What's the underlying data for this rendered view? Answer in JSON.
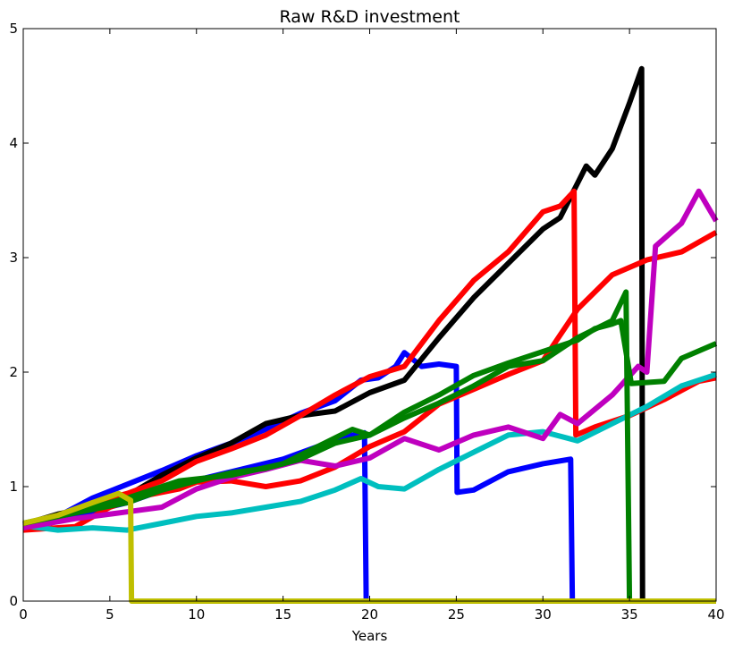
{
  "chart_data": {
    "type": "line",
    "title": "Raw R&D investment",
    "xlabel": "Years",
    "ylabel": "",
    "xlim": [
      0,
      40
    ],
    "ylim": [
      0,
      5
    ],
    "xticks": [
      0,
      5,
      10,
      15,
      20,
      25,
      30,
      35,
      40
    ],
    "yticks": [
      0,
      1,
      2,
      3,
      4,
      5
    ],
    "grid": false,
    "legend": "none",
    "series": [
      {
        "color": "#0000ff",
        "points": [
          [
            0,
            0.66
          ],
          [
            2,
            0.74
          ],
          [
            4,
            0.9
          ],
          [
            6,
            1.02
          ],
          [
            8,
            1.14
          ],
          [
            10,
            1.27
          ],
          [
            12,
            1.38
          ],
          [
            14,
            1.5
          ],
          [
            16,
            1.64
          ],
          [
            18,
            1.75
          ],
          [
            19.5,
            1.93
          ],
          [
            20.5,
            1.95
          ],
          [
            21.5,
            2.05
          ],
          [
            22,
            2.17
          ],
          [
            23,
            2.05
          ],
          [
            24,
            2.07
          ],
          [
            25,
            2.05
          ],
          [
            25.05,
            0.95
          ],
          [
            26,
            0.97
          ],
          [
            28,
            1.13
          ],
          [
            30,
            1.2
          ],
          [
            31.6,
            1.24
          ],
          [
            31.7,
            0.0
          ],
          [
            40,
            0.0
          ]
        ]
      },
      {
        "color": "#0000ff",
        "points": [
          [
            0,
            0.66
          ],
          [
            3,
            0.75
          ],
          [
            6,
            0.86
          ],
          [
            9,
            1.02
          ],
          [
            12,
            1.13
          ],
          [
            15,
            1.24
          ],
          [
            17,
            1.35
          ],
          [
            19,
            1.45
          ],
          [
            19.7,
            1.47
          ],
          [
            19.8,
            0.0
          ],
          [
            40,
            0.0
          ]
        ]
      },
      {
        "color": "#000000",
        "points": [
          [
            0,
            0.67
          ],
          [
            2,
            0.76
          ],
          [
            4,
            0.82
          ],
          [
            6,
            0.92
          ],
          [
            8,
            1.1
          ],
          [
            10,
            1.25
          ],
          [
            12,
            1.38
          ],
          [
            14,
            1.55
          ],
          [
            16,
            1.62
          ],
          [
            18,
            1.66
          ],
          [
            20,
            1.82
          ],
          [
            22,
            1.93
          ],
          [
            24,
            2.3
          ],
          [
            26,
            2.65
          ],
          [
            28,
            2.95
          ],
          [
            30,
            3.25
          ],
          [
            31,
            3.35
          ],
          [
            32,
            3.65
          ],
          [
            32.5,
            3.8
          ],
          [
            33,
            3.72
          ],
          [
            34,
            3.95
          ],
          [
            35,
            4.35
          ],
          [
            35.7,
            4.65
          ],
          [
            35.75,
            0.0
          ],
          [
            40,
            0.0
          ]
        ]
      },
      {
        "color": "#ff0000",
        "points": [
          [
            0,
            0.65
          ],
          [
            2,
            0.73
          ],
          [
            4,
            0.86
          ],
          [
            6,
            0.94
          ],
          [
            8,
            1.05
          ],
          [
            10,
            1.22
          ],
          [
            12,
            1.33
          ],
          [
            14,
            1.45
          ],
          [
            16,
            1.62
          ],
          [
            18,
            1.8
          ],
          [
            20,
            1.96
          ],
          [
            22,
            2.05
          ],
          [
            24,
            2.45
          ],
          [
            26,
            2.8
          ],
          [
            28,
            3.05
          ],
          [
            30,
            3.4
          ],
          [
            31,
            3.45
          ],
          [
            31.8,
            3.58
          ],
          [
            31.9,
            1.45
          ],
          [
            33,
            1.52
          ],
          [
            35,
            1.62
          ],
          [
            37,
            1.76
          ],
          [
            39,
            1.92
          ],
          [
            40,
            1.95
          ]
        ]
      },
      {
        "color": "#ff0000",
        "points": [
          [
            0,
            0.62
          ],
          [
            3,
            0.65
          ],
          [
            5,
            0.82
          ],
          [
            7,
            0.92
          ],
          [
            9,
            0.98
          ],
          [
            10,
            1.04
          ],
          [
            12,
            1.05
          ],
          [
            14,
            1.0
          ],
          [
            16,
            1.05
          ],
          [
            18,
            1.17
          ],
          [
            20,
            1.35
          ],
          [
            22,
            1.48
          ],
          [
            24,
            1.72
          ],
          [
            26,
            1.85
          ],
          [
            28,
            1.98
          ],
          [
            30,
            2.1
          ],
          [
            32,
            2.55
          ],
          [
            34,
            2.85
          ],
          [
            36,
            2.98
          ],
          [
            38,
            3.05
          ],
          [
            40,
            3.22
          ]
        ]
      },
      {
        "color": "#00bfbf",
        "points": [
          [
            0,
            0.66
          ],
          [
            2,
            0.62
          ],
          [
            4,
            0.64
          ],
          [
            6,
            0.62
          ],
          [
            8,
            0.68
          ],
          [
            10,
            0.74
          ],
          [
            12,
            0.77
          ],
          [
            14,
            0.82
          ],
          [
            16,
            0.87
          ],
          [
            18,
            0.97
          ],
          [
            19.5,
            1.07
          ],
          [
            20.5,
            1.0
          ],
          [
            22,
            0.98
          ],
          [
            24,
            1.15
          ],
          [
            26,
            1.3
          ],
          [
            28,
            1.45
          ],
          [
            30,
            1.48
          ],
          [
            32,
            1.4
          ],
          [
            34,
            1.55
          ],
          [
            36,
            1.7
          ],
          [
            38,
            1.88
          ],
          [
            40,
            1.98
          ]
        ]
      },
      {
        "color": "#bf00bf",
        "points": [
          [
            0,
            0.64
          ],
          [
            3,
            0.72
          ],
          [
            6,
            0.78
          ],
          [
            8,
            0.82
          ],
          [
            10,
            0.98
          ],
          [
            12,
            1.08
          ],
          [
            14,
            1.15
          ],
          [
            16,
            1.23
          ],
          [
            18,
            1.18
          ],
          [
            20,
            1.25
          ],
          [
            22,
            1.42
          ],
          [
            24,
            1.32
          ],
          [
            26,
            1.45
          ],
          [
            28,
            1.52
          ],
          [
            30,
            1.42
          ],
          [
            31,
            1.63
          ],
          [
            32,
            1.55
          ],
          [
            34,
            1.8
          ],
          [
            35.5,
            2.05
          ],
          [
            36,
            2.0
          ],
          [
            36.5,
            3.1
          ],
          [
            38,
            3.3
          ],
          [
            39,
            3.58
          ],
          [
            40,
            3.32
          ]
        ]
      },
      {
        "color": "#008000",
        "points": [
          [
            0,
            0.68
          ],
          [
            2,
            0.74
          ],
          [
            4,
            0.8
          ],
          [
            6,
            0.86
          ],
          [
            8,
            0.97
          ],
          [
            10,
            1.05
          ],
          [
            12,
            1.12
          ],
          [
            14,
            1.16
          ],
          [
            16,
            1.24
          ],
          [
            18,
            1.38
          ],
          [
            20,
            1.45
          ],
          [
            22,
            1.6
          ],
          [
            24,
            1.73
          ],
          [
            26,
            1.88
          ],
          [
            28,
            2.05
          ],
          [
            30,
            2.1
          ],
          [
            32,
            2.3
          ],
          [
            34,
            2.45
          ],
          [
            34.8,
            2.7
          ],
          [
            35.0,
            0.0
          ],
          [
            40,
            0.0
          ]
        ]
      },
      {
        "color": "#008000",
        "points": [
          [
            0,
            0.68
          ],
          [
            3,
            0.78
          ],
          [
            6,
            0.9
          ],
          [
            9,
            1.05
          ],
          [
            12,
            1.1
          ],
          [
            15,
            1.2
          ],
          [
            17,
            1.35
          ],
          [
            19,
            1.5
          ],
          [
            20,
            1.45
          ],
          [
            22,
            1.65
          ],
          [
            24,
            1.8
          ],
          [
            26,
            1.97
          ],
          [
            28,
            2.08
          ],
          [
            30,
            2.18
          ],
          [
            32,
            2.28
          ],
          [
            33,
            2.38
          ],
          [
            34,
            2.42
          ],
          [
            34.5,
            2.45
          ],
          [
            35.1,
            1.9
          ],
          [
            37,
            1.92
          ],
          [
            38,
            2.12
          ],
          [
            40,
            2.25
          ]
        ]
      },
      {
        "color": "#bfbf00",
        "points": [
          [
            0,
            0.68
          ],
          [
            2,
            0.75
          ],
          [
            4,
            0.86
          ],
          [
            5.5,
            0.94
          ],
          [
            6.2,
            0.88
          ],
          [
            6.25,
            0.0
          ],
          [
            40,
            0.0
          ]
        ]
      }
    ]
  }
}
